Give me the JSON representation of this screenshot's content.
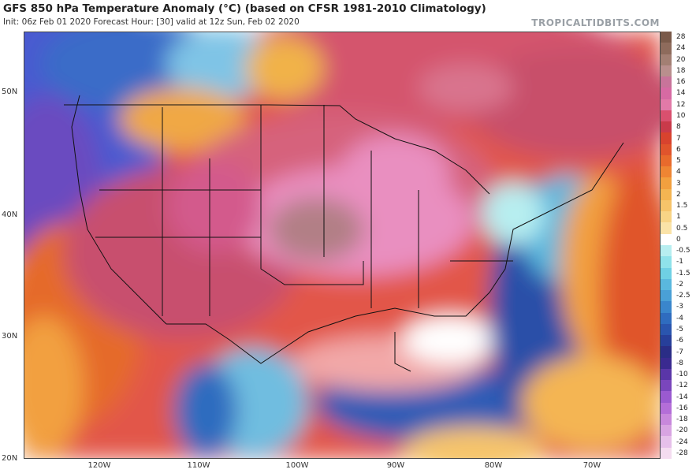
{
  "title": "GFS 850 hPa Temperature Anomaly (°C) (based on CFSR 1981-2010 Climatology)",
  "subtitle": "Init: 06z Feb 01 2020   Forecast Hour: [30]   valid at 12z Sun, Feb 02 2020",
  "brand": "TROPICALTIDBITS.COM",
  "axes": {
    "lat_labels": [
      "50N",
      "40N",
      "30N",
      "20N"
    ],
    "lon_labels": [
      "120W",
      "110W",
      "100W",
      "90W",
      "80W",
      "70W"
    ]
  },
  "colorbar": {
    "labels": [
      "28",
      "24",
      "20",
      "18",
      "16",
      "14",
      "12",
      "10",
      "8",
      "7",
      "6",
      "5",
      "4",
      "3",
      "2",
      "1.5",
      "1",
      "0.5",
      "0",
      "-0.5",
      "-1",
      "-1.5",
      "-2",
      "-2.5",
      "-3",
      "-4",
      "-5",
      "-6",
      "-7",
      "-8",
      "-10",
      "-12",
      "-14",
      "-16",
      "-18",
      "-20",
      "-24",
      "-28"
    ],
    "colors": [
      "#7a5a4a",
      "#8e6b5c",
      "#a37f73",
      "#b98f8d",
      "#c8749a",
      "#d76aa3",
      "#e27aa8",
      "#d9506e",
      "#c93a4a",
      "#d8432e",
      "#e0542c",
      "#e86a2c",
      "#ee8533",
      "#f2a03f",
      "#f4b552",
      "#f6c46a",
      "#f8d486",
      "#fae3a8",
      "#ffffff",
      "#b7eef0",
      "#8fe2ea",
      "#6fd0e4",
      "#5ab8de",
      "#4aa0d6",
      "#3a86cc",
      "#2f6cbf",
      "#2a55ae",
      "#273f9a",
      "#2a2d86",
      "#3a2a90",
      "#5a36a8",
      "#7a46bc",
      "#9a5ad0",
      "#b46ed8",
      "#c888dc",
      "#d8a4e2",
      "#e6c0ea",
      "#f4dcf0"
    ]
  }
}
